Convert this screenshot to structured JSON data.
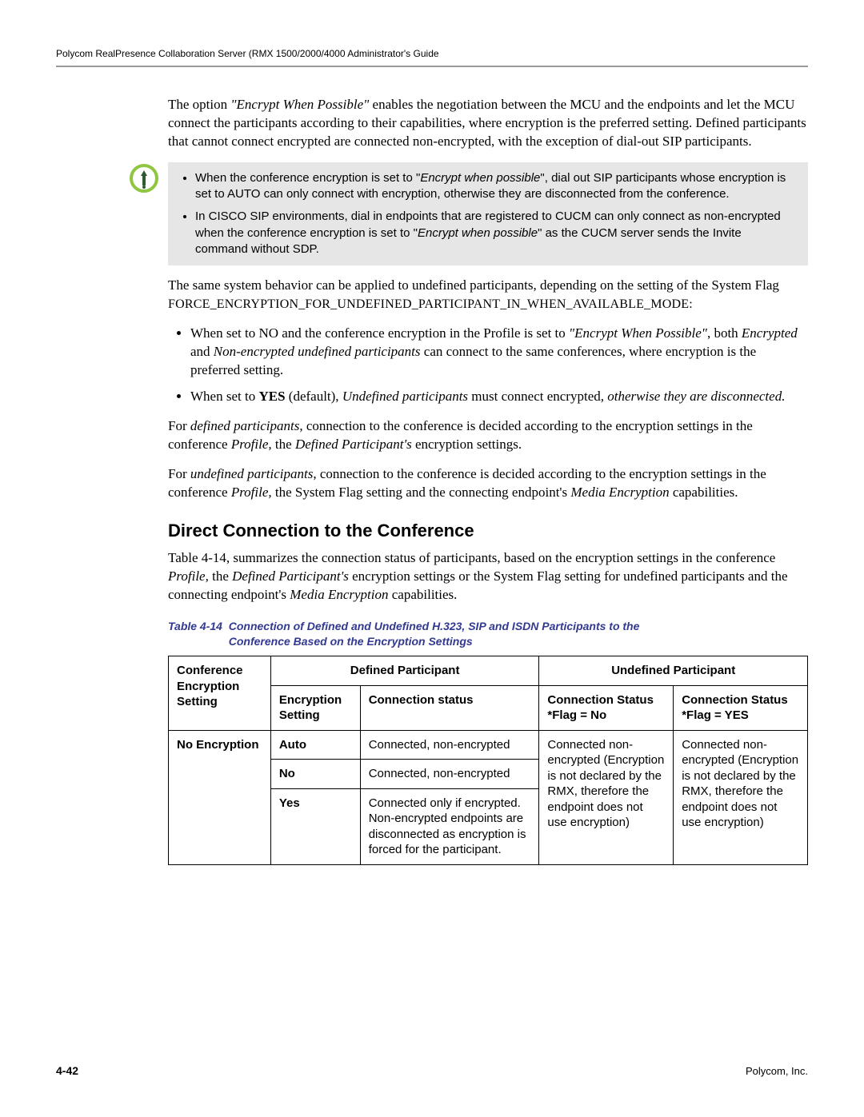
{
  "header": "Polycom RealPresence Collaboration Server (RMX 1500/2000/4000 Administrator's Guide",
  "intro": {
    "pre": "The option ",
    "quote": "\"Encrypt When Possible\"",
    "post": " enables the negotiation between the MCU and the endpoints and let the MCU connect the participants according to their capabilities, where encryption is the preferred setting. Defined participants that cannot connect encrypted are connected non-encrypted, with the exception of dial-out SIP participants."
  },
  "note": {
    "item1_pre": "When the conference encryption is set to \"",
    "item1_em": "Encrypt when possible",
    "item1_post": "\", dial out SIP participants whose encryption is set to AUTO can only connect with encryption, otherwise they are disconnected from the conference.",
    "item2_pre": "In CISCO SIP environments, dial in endpoints that are registered to CUCM can only connect as non-encrypted when the conference encryption is set to \"",
    "item2_em": "Encrypt when possible",
    "item2_post": "\" as the CUCM server sends the Invite command without SDP."
  },
  "after_note": "The same system behavior can be applied to undefined participants, depending on the setting of the System Flag",
  "flag": "FORCE_ENCRYPTION_FOR_UNDEFINED_PARTICIPANT_IN_WHEN_AVAILABLE_MODE:",
  "bullets": {
    "b1_a": "When set to NO and the conference encryption in the Profile is set to ",
    "b1_em1": "\"Encrypt When Possible\"",
    "b1_b": ", both ",
    "b1_em2": "Encrypted",
    "b1_c": " and ",
    "b1_em3": "Non-encrypted undefined participants",
    "b1_d": " can connect to the same conferences, where encryption is the preferred setting.",
    "b2_a": "When set to ",
    "b2_yes": "YES",
    "b2_b": " (default), ",
    "b2_em": "Undefined participants",
    "b2_c": " must connect encrypted",
    "b2_tail": ", otherwise they are disconnected."
  },
  "p_defined": {
    "a": "For ",
    "em1": "defined participants",
    "b": ", connection to the conference is decided according to the encryption settings in the conference ",
    "em2": "Profile,",
    "c": " the ",
    "em3": "Defined Participant's",
    "d": " encryption settings."
  },
  "p_undefined": {
    "a": "For ",
    "em1": "undefined participants",
    "b": ", connection to the conference is decided according to the encryption settings in the conference ",
    "em2": "Profile,",
    "c": " the System Flag setting and the connecting endpoint's ",
    "em3": "Media Encryption",
    "d": " capabilities."
  },
  "h2": "Direct Connection to the Conference",
  "summary": {
    "a": "Table 4-14, summarizes the connection status of participants, based on the encryption settings in the conference ",
    "em1": "Profile,",
    "b": " the ",
    "em2": "Defined Participant's",
    "c": " encryption settings or the System Flag setting for undefined participants and the connecting endpoint's ",
    "em3": "Media Encryption",
    "d": " capabilities."
  },
  "table_caption": {
    "lead": "Table 4-14",
    "rest_line1": "Connection of Defined and Undefined H.323, SIP and ISDN Participants to the",
    "rest_line2": "Conference Based on the Encryption Settings"
  },
  "table": {
    "head": {
      "conf": "Conference Encryption Setting",
      "defined": "Defined Participant",
      "undefined": "Undefined Participant",
      "enc_setting": "Encryption Setting",
      "conn_status": "Connection status",
      "cs_flag_no": "Connection Status\n*Flag = No",
      "cs_flag_yes": "Connection Status\n*Flag = YES"
    },
    "rows": {
      "conf0": "No Encryption",
      "r0_es": "Auto",
      "r0_cs": "Connected, non-encrypted",
      "r1_es": "No",
      "r1_cs": "Connected, non-encrypted",
      "r2_es": "Yes",
      "r2_cs": "Connected only if encrypted.\nNon-encrypted endpoints are disconnected as encryption is forced for the participant.",
      "un_no": "Connected non-encrypted (Encryption is not declared by the RMX, therefore the endpoint does not use encryption)",
      "un_yes": "Connected non-encrypted (Encryption is not declared by the RMX, therefore the endpoint does not use encryption)"
    }
  },
  "footer": {
    "left": "4-42",
    "right": "Polycom, Inc."
  },
  "colors": {
    "caption": "#323991",
    "note_bg": "#e6e6e6",
    "icon_ring": "#8fc63f",
    "icon_inner": "#2f5a2f"
  }
}
